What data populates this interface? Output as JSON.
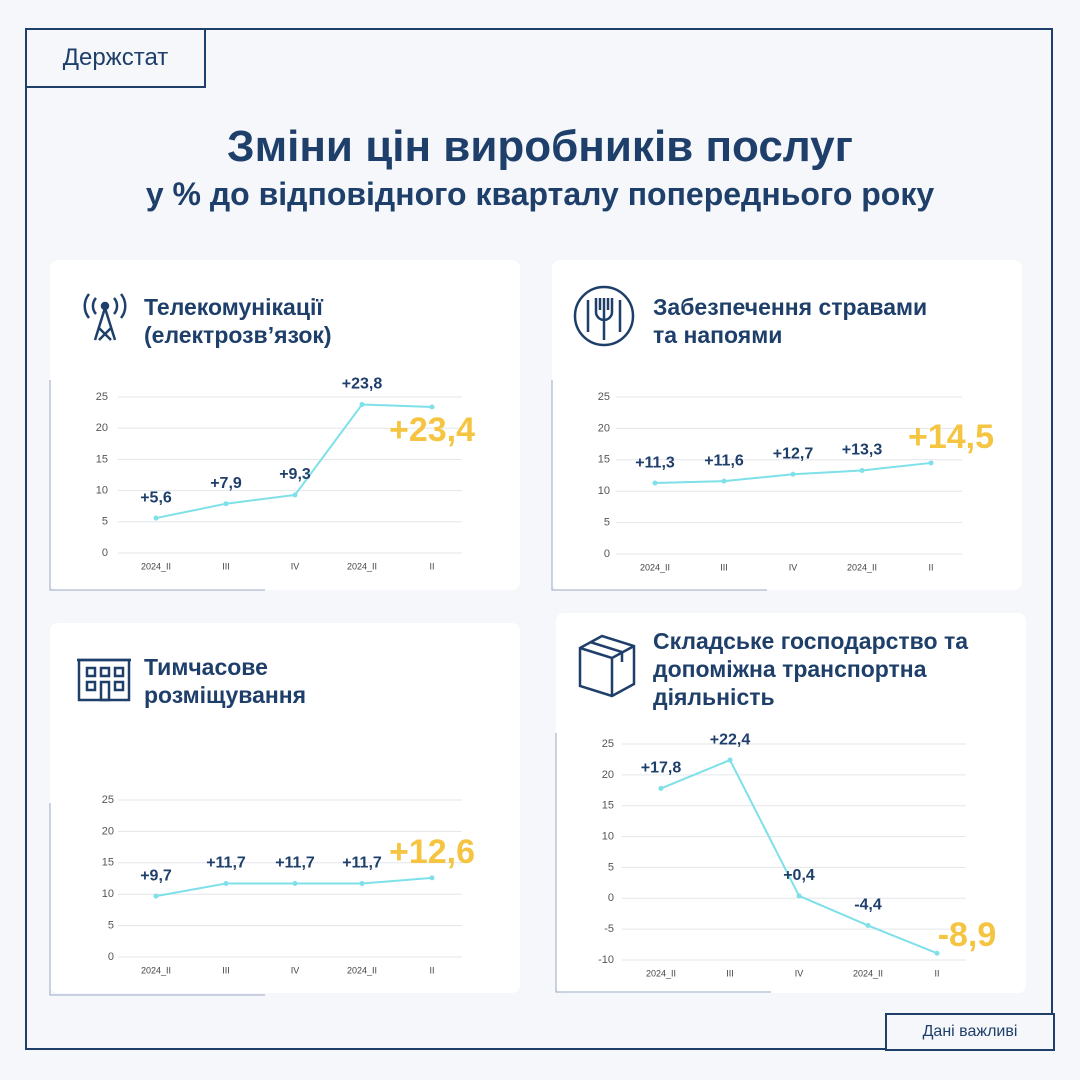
{
  "brand": "Держстат",
  "title": "Зміни цін виробників послуг",
  "subtitle": "у % до відповідного кварталу попереднього року",
  "footer": "Дані важливі",
  "chart_data": [
    {
      "type": "line",
      "title": "Телекомунікації (електрозв’язок)",
      "categories": [
        "2024_II",
        "III",
        "IV",
        "2024_II",
        "II"
      ],
      "values": [
        5.6,
        7.9,
        9.3,
        23.8,
        23.4
      ],
      "value_labels": [
        "+5,6",
        "+7,9",
        "+9,3",
        "+23,8",
        "+23,4"
      ],
      "color": "#7ee0e8",
      "highlight_color": "#f5c542",
      "ylim": [
        0,
        25
      ],
      "yticks": [
        0,
        5,
        10,
        15,
        20,
        25
      ],
      "grid": true
    },
    {
      "type": "line",
      "title": "Забезпечення стравами та напоями",
      "categories": [
        "2024_II",
        "III",
        "IV",
        "2024_II",
        "II"
      ],
      "values": [
        11.3,
        11.6,
        12.7,
        13.3,
        14.5
      ],
      "value_labels": [
        "+11,3",
        "+11,6",
        "+12,7",
        "+13,3",
        "+14,5"
      ],
      "color": "#7ee0e8",
      "highlight_color": "#f5c542",
      "ylim": [
        0,
        25
      ],
      "yticks": [
        0,
        5,
        10,
        15,
        20,
        25
      ],
      "grid": true
    },
    {
      "type": "line",
      "title": "Тимчасове розміщування",
      "categories": [
        "2024_II",
        "III",
        "IV",
        "2024_II",
        "II"
      ],
      "values": [
        9.7,
        11.7,
        11.7,
        11.7,
        12.6
      ],
      "value_labels": [
        "+9,7",
        "+11,7",
        "+11,7",
        "+11,7",
        "+12,6"
      ],
      "color": "#7ee0e8",
      "highlight_color": "#f5c542",
      "ylim": [
        0,
        25
      ],
      "yticks": [
        0,
        5,
        10,
        15,
        20,
        25
      ],
      "grid": true
    },
    {
      "type": "line",
      "title": "Складське господарство та допоміжна транспортна діяльність",
      "categories": [
        "2024_II",
        "III",
        "IV",
        "2024_II",
        "II"
      ],
      "values": [
        17.8,
        22.4,
        0.4,
        -4.4,
        -8.9
      ],
      "value_labels": [
        "+17,8",
        "+22,4",
        "+0,4",
        "-4,4",
        "-8,9"
      ],
      "color": "#7ee0e8",
      "highlight_color": "#f5c542",
      "ylim": [
        -10,
        25
      ],
      "yticks": [
        -10,
        -5,
        0,
        5,
        10,
        15,
        20,
        25
      ],
      "grid": true
    }
  ]
}
